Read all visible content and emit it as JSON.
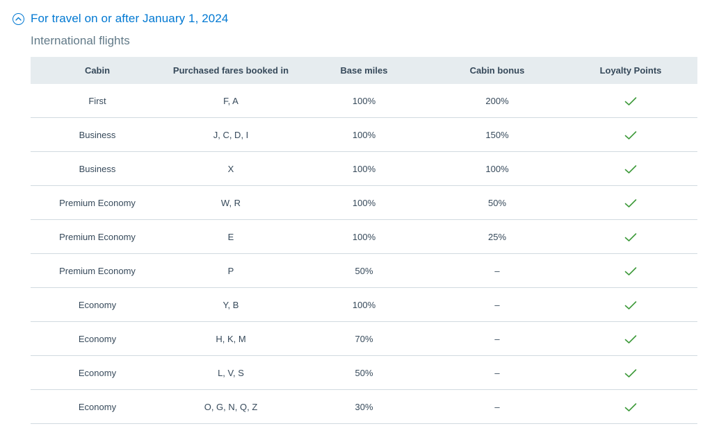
{
  "accordion": {
    "title": "For travel on or after January 1, 2024",
    "icon": "chevron-up-circle-icon",
    "accent_color": "#0078d2"
  },
  "section": {
    "subtitle": "International flights"
  },
  "table": {
    "headers": [
      "Cabin",
      "Purchased fares booked in",
      "Base miles",
      "Cabin bonus",
      "Loyalty Points"
    ],
    "check_icon": "checkmark-icon",
    "check_color": "#3d9a3a",
    "rows": [
      {
        "cabin": "First",
        "fares": "F, A",
        "base_miles": "100%",
        "cabin_bonus": "200%",
        "loyalty_points": true
      },
      {
        "cabin": "Business",
        "fares": "J, C, D, I",
        "base_miles": "100%",
        "cabin_bonus": "150%",
        "loyalty_points": true
      },
      {
        "cabin": "Business",
        "fares": "X",
        "base_miles": "100%",
        "cabin_bonus": "100%",
        "loyalty_points": true
      },
      {
        "cabin": "Premium Economy",
        "fares": "W, R",
        "base_miles": "100%",
        "cabin_bonus": "50%",
        "loyalty_points": true
      },
      {
        "cabin": "Premium Economy",
        "fares": "E",
        "base_miles": "100%",
        "cabin_bonus": "25%",
        "loyalty_points": true
      },
      {
        "cabin": "Premium Economy",
        "fares": "P",
        "base_miles": "50%",
        "cabin_bonus": "–",
        "loyalty_points": true
      },
      {
        "cabin": "Economy",
        "fares": "Y, B",
        "base_miles": "100%",
        "cabin_bonus": "–",
        "loyalty_points": true
      },
      {
        "cabin": "Economy",
        "fares": "H, K, M",
        "base_miles": "70%",
        "cabin_bonus": "–",
        "loyalty_points": true
      },
      {
        "cabin": "Economy",
        "fares": "L, V, S",
        "base_miles": "50%",
        "cabin_bonus": "–",
        "loyalty_points": true
      },
      {
        "cabin": "Economy",
        "fares": "O, G, N, Q, Z",
        "base_miles": "30%",
        "cabin_bonus": "–",
        "loyalty_points": true
      }
    ]
  }
}
